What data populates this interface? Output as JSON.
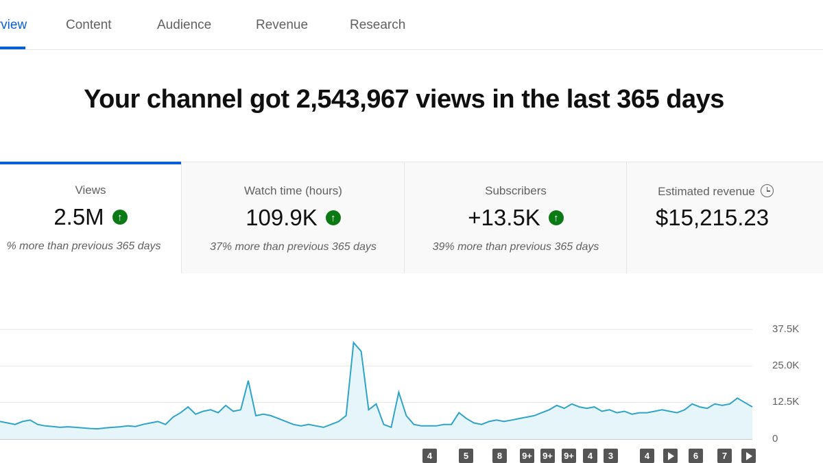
{
  "tabs": [
    {
      "label": "Overview",
      "active": true
    },
    {
      "label": "Content"
    },
    {
      "label": "Audience"
    },
    {
      "label": "Revenue"
    },
    {
      "label": "Research"
    }
  ],
  "headline": "Your channel got 2,543,967 views in the last 365 days",
  "metrics": [
    {
      "label": "Views",
      "value": "2.5M",
      "trend": "up",
      "desc": "% more than previous 365 days",
      "active": true
    },
    {
      "label": "Watch time (hours)",
      "value": "109.9K",
      "trend": "up",
      "desc": "37% more than previous 365 days"
    },
    {
      "label": "Subscribers",
      "value": "+13.5K",
      "trend": "up",
      "desc": "39% more than previous 365 days"
    },
    {
      "label": "Estimated revenue",
      "value": "$15,215.23",
      "icon": "clock-icon"
    }
  ],
  "colors": {
    "accent": "#065fd4",
    "trend_up": "#0b7a14",
    "line": "#2ea3c9",
    "fill": "#e6f5fa",
    "marker": "#555555"
  },
  "chart_data": {
    "type": "area",
    "ylim": [
      0,
      37.5
    ],
    "y_ticks": [
      "0",
      "12.5K",
      "25.0K",
      "37.5K"
    ],
    "y_tick_values": [
      0,
      12.5,
      25,
      37.5
    ],
    "grid": true,
    "values": [
      6,
      5.5,
      5,
      6,
      6.5,
      5,
      4.5,
      4.3,
      4,
      4.2,
      4,
      3.8,
      3.6,
      3.5,
      3.8,
      4,
      4.2,
      4.5,
      4.3,
      5,
      5.5,
      6,
      5,
      7.5,
      9,
      11,
      8.5,
      9.5,
      10,
      9,
      11.5,
      9.5,
      10,
      20,
      8,
      8.5,
      8,
      7,
      6,
      5,
      4.5,
      5,
      4.5,
      4,
      5,
      6,
      8,
      33,
      30,
      10,
      12,
      5,
      4,
      16,
      8,
      5,
      4.5,
      4.5,
      4.5,
      5,
      5,
      9,
      7,
      5.5,
      5,
      6,
      6.5,
      6,
      6.5,
      7,
      7.5,
      8,
      9,
      10,
      11.5,
      10.5,
      12,
      11,
      10.5,
      11,
      9.5,
      10,
      9,
      9.5,
      8.5,
      9,
      9,
      9.5,
      10,
      9.5,
      9,
      10,
      12,
      11,
      10.5,
      12,
      11.5,
      12,
      14,
      12.5,
      11
    ],
    "markers": [
      {
        "label": "4"
      },
      {
        "label": "5"
      },
      {
        "label": "8"
      },
      {
        "label": "9+"
      },
      {
        "label": "9+"
      },
      {
        "label": "9+"
      },
      {
        "label": "4"
      },
      {
        "label": "3"
      },
      {
        "label": "4"
      },
      {
        "label": "",
        "icon": "play-icon"
      },
      {
        "label": "6"
      },
      {
        "label": "7"
      },
      {
        "label": "",
        "icon": "play-icon"
      }
    ]
  }
}
